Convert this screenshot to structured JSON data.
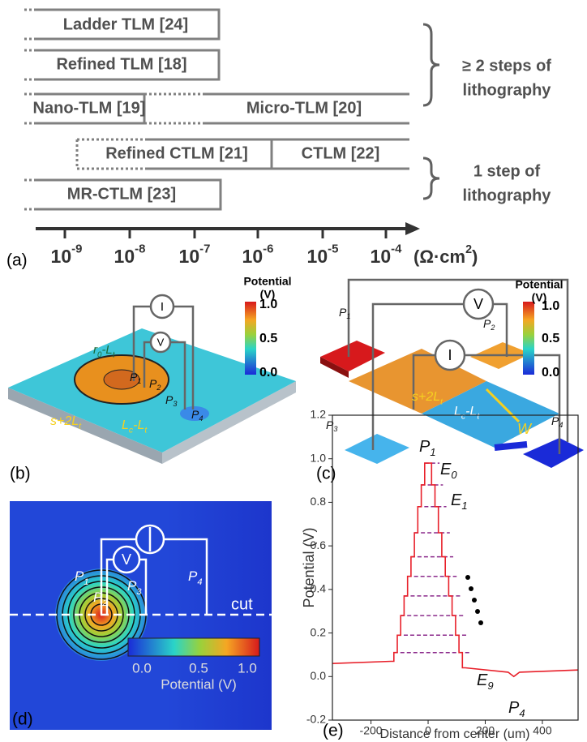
{
  "panel_a": {
    "label": "(a)",
    "bars": [
      "Ladder TLM [24]",
      "Refined TLM [18]",
      "Nano-TLM [19]",
      "Micro-TLM [20]",
      "Refined CTLM [21]",
      "CTLM [22]",
      "MR-CTLM [23]"
    ],
    "groups": [
      [
        "≥ 2 steps of",
        "lithography"
      ],
      [
        "1 step of",
        "lithography"
      ]
    ],
    "axis_ticks": [
      [
        "10",
        "-9"
      ],
      [
        "10",
        "-8"
      ],
      [
        "10",
        "-7"
      ],
      [
        "10",
        "-6"
      ],
      [
        "10",
        "-5"
      ],
      [
        "10",
        "-4"
      ]
    ],
    "unit": [
      "(Ω·cm",
      "2",
      ")"
    ]
  },
  "panel_b": {
    "label": "(b)",
    "colorbar_title": [
      "Potential",
      "(V)"
    ],
    "colorbar_ticks": [
      "1.0",
      "0.5",
      "0.0"
    ],
    "meters": [
      "I",
      "V"
    ],
    "probes": [
      [
        "P",
        "1"
      ],
      [
        "P",
        "2"
      ],
      [
        "P",
        "3"
      ],
      [
        "P",
        "4"
      ]
    ],
    "dims": [
      [
        "r",
        "0",
        "-L",
        "t"
      ],
      [
        "s+2L",
        "t"
      ],
      [
        "L",
        "c",
        "-L",
        "t"
      ]
    ]
  },
  "panel_c": {
    "label": "(c)",
    "colorbar_title": [
      "Potential",
      "(V)"
    ],
    "colorbar_ticks": [
      "1.0",
      "0.5",
      "0.0"
    ],
    "meters": [
      "V",
      "I"
    ],
    "probes": [
      [
        "P",
        "1"
      ],
      [
        "P",
        "2"
      ],
      [
        "P",
        "3"
      ],
      [
        "P",
        "4"
      ]
    ],
    "dims": [
      [
        "s+2L",
        "t"
      ],
      [
        "L",
        "c",
        "-L",
        "t"
      ],
      [
        "W"
      ]
    ]
  },
  "panel_d": {
    "label": "(d)",
    "probes": [
      [
        "P",
        "1"
      ],
      [
        "P",
        "2"
      ],
      [
        "P",
        "3"
      ],
      [
        "P",
        "4"
      ]
    ],
    "meters": [
      "V"
    ],
    "cut": "cut",
    "colorbar_ticks": [
      "0.0",
      "0.5",
      "1.0"
    ],
    "colorbar_title": "Potential (V)"
  },
  "panel_e": {
    "label": "(e)",
    "type": "line",
    "x_label": "Distance from center (um)",
    "y_label": "Potential (V)",
    "xlim": [
      -335,
      525
    ],
    "ylim": [
      -0.2,
      1.2
    ],
    "xticks": [
      -200,
      0,
      200,
      400
    ],
    "yticks": [
      {
        "value": 1.2,
        "label": "1.2"
      },
      {
        "value": 1,
        "label": "1.0"
      },
      {
        "value": 0.8,
        "label": "0.8"
      },
      {
        "value": 0.6,
        "label": "0.6"
      },
      {
        "value": 0.4,
        "label": "0.4"
      },
      {
        "value": 0.2,
        "label": "0.2"
      },
      {
        "value": 0,
        "label": "0.0"
      },
      {
        "value": -0.2,
        "label": "-0.2"
      }
    ],
    "color": "#e8202a",
    "level_color": "#8b2a8b",
    "x": [
      -335,
      -130,
      -120,
      -120,
      -108,
      -108,
      -96,
      -96,
      -84,
      -84,
      -72,
      -72,
      -60,
      -60,
      -48,
      -48,
      -36,
      -36,
      -24,
      -24,
      -12,
      -12,
      12,
      12,
      24,
      24,
      36,
      36,
      48,
      48,
      60,
      60,
      72,
      72,
      84,
      84,
      96,
      96,
      108,
      108,
      120,
      120,
      130,
      280,
      300,
      320,
      525
    ],
    "values": [
      0.06,
      0.07,
      0.07,
      0.11,
      0.11,
      0.19,
      0.19,
      0.28,
      0.28,
      0.37,
      0.37,
      0.46,
      0.46,
      0.55,
      0.55,
      0.66,
      0.66,
      0.78,
      0.78,
      0.88,
      0.88,
      0.98,
      0.98,
      0.88,
      0.88,
      0.78,
      0.78,
      0.66,
      0.66,
      0.55,
      0.55,
      0.46,
      0.46,
      0.37,
      0.37,
      0.28,
      0.28,
      0.19,
      0.19,
      0.11,
      0.11,
      0.04,
      0.04,
      0.02,
      0.0,
      0.02,
      0.03
    ],
    "levels": [
      0.98,
      0.88,
      0.78,
      0.66,
      0.55,
      0.46,
      0.37,
      0.28,
      0.19,
      0.11
    ],
    "annotations": [
      [
        "P",
        "1"
      ],
      [
        "E",
        "0"
      ],
      [
        "E",
        "1"
      ],
      [
        "E",
        "9"
      ],
      [
        "P",
        "4"
      ]
    ]
  }
}
